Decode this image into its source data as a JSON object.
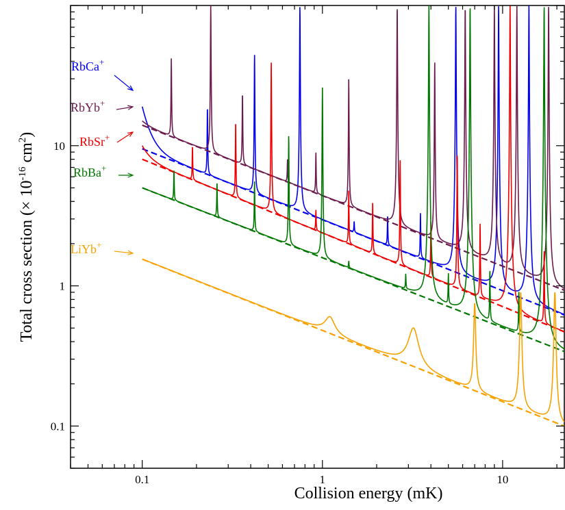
{
  "chart_data": {
    "type": "line",
    "xlabel": "Collision energy (mK)",
    "ylabel_parts": [
      "Total cross section (× 10",
      "-16",
      " cm",
      "2",
      ")"
    ],
    "xscale": "log",
    "yscale": "log",
    "xlim": [
      0.04,
      22
    ],
    "ylim": [
      0.05,
      100
    ],
    "x_ticks": [
      {
        "value": 0.1,
        "label": "0.1"
      },
      {
        "value": 1,
        "label": "1"
      },
      {
        "value": 10,
        "label": "10"
      }
    ],
    "y_ticks": [
      {
        "value": 0.1,
        "label": "0.1"
      },
      {
        "value": 1,
        "label": "1"
      },
      {
        "value": 10,
        "label": "10"
      }
    ],
    "grid": false,
    "series": [
      {
        "name": "RbCa",
        "sup": "+",
        "color": "#0000ee",
        "dashed_at_0_1": 9.5,
        "dashed_at_22": 0.62,
        "solid_at_0_1": 19,
        "resonances": [
          [
            0.23,
            19
          ],
          [
            0.42,
            45
          ],
          [
            0.75,
            100
          ],
          [
            1.5,
            2.9
          ],
          [
            2.3,
            3.2
          ],
          [
            3.5,
            3.3
          ],
          [
            5.5,
            100
          ],
          [
            9.5,
            100
          ],
          [
            14,
            100
          ]
        ]
      },
      {
        "name": "RbYb",
        "sup": "+",
        "color": "#6b1a4e",
        "dashed_at_0_1": 14,
        "dashed_at_22": 0.93,
        "solid_at_0_1": 15,
        "resonances": [
          [
            0.145,
            42
          ],
          [
            0.24,
            100
          ],
          [
            0.36,
            24
          ],
          [
            0.64,
            8
          ],
          [
            0.92,
            9
          ],
          [
            1.4,
            30
          ],
          [
            2.6,
            100
          ],
          [
            4.2,
            40
          ],
          [
            6.2,
            100
          ],
          [
            9,
            100
          ],
          [
            12,
            100
          ],
          [
            18,
            100
          ]
        ]
      },
      {
        "name": "RbSr",
        "sup": "+",
        "color": "#ee0000",
        "dashed_at_0_1": 8,
        "dashed_at_22": 0.47,
        "solid_at_0_1": 10,
        "resonances": [
          [
            0.19,
            10
          ],
          [
            0.33,
            15
          ],
          [
            0.52,
            40
          ],
          [
            0.92,
            3.5
          ],
          [
            1.4,
            4.8
          ],
          [
            1.9,
            4
          ],
          [
            2.7,
            8
          ],
          [
            4,
            2.9
          ],
          [
            5.6,
            9
          ],
          [
            7.5,
            2.8
          ],
          [
            11,
            100
          ],
          [
            17,
            1.8
          ]
        ]
      },
      {
        "name": "RbBa",
        "sup": "+",
        "color": "#007700",
        "dashed_at_0_1": 5,
        "dashed_at_22": 0.34,
        "solid_at_0_1": 5,
        "resonances": [
          [
            0.15,
            6.8
          ],
          [
            0.26,
            5.5
          ],
          [
            0.42,
            5.6
          ],
          [
            0.65,
            12
          ],
          [
            1,
            26
          ],
          [
            1.4,
            1.5
          ],
          [
            2.1,
            1.1
          ],
          [
            2.9,
            1.2
          ],
          [
            3.9,
            100
          ],
          [
            5,
            1.2
          ],
          [
            6.6,
            100
          ],
          [
            8.5,
            1.3
          ],
          [
            12.3,
            0.9
          ],
          [
            17,
            100
          ]
        ]
      },
      {
        "name": "LiYb",
        "sup": "+",
        "color": "#f7a100",
        "dashed_at_0_1": 1.55,
        "dashed_at_22": 0.1,
        "solid_at_0_1": 1.55,
        "resonances": [
          [
            1.1,
            0.6
          ],
          [
            3.2,
            0.5
          ],
          [
            7,
            0.75
          ],
          [
            12.6,
            0.9
          ],
          [
            19.5,
            0.9
          ]
        ]
      }
    ]
  }
}
